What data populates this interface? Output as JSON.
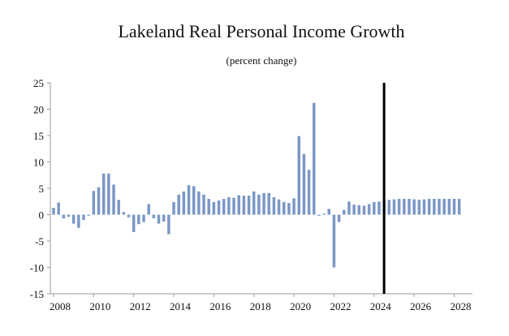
{
  "chart_data": {
    "type": "bar",
    "title": "Lakeland Real Personal Income Growth",
    "subtitle": "(percent change)",
    "xlabel": "",
    "ylabel": "",
    "ylim": [
      -15,
      25
    ],
    "yticks": [
      25,
      20,
      15,
      10,
      5,
      0,
      -5,
      -10,
      -15
    ],
    "x_start": 2008.0,
    "x_end": 2028.75,
    "x_ticks": [
      "2008",
      "2010",
      "2012",
      "2014",
      "2016",
      "2018",
      "2020",
      "2022",
      "2024",
      "2026",
      "2028"
    ],
    "forecast_marker_x": 2024.5,
    "bar_color": "#7b97c6",
    "series": [
      {
        "x": [
          2008.0,
          2008.25,
          2008.5,
          2008.75,
          2009.0,
          2009.25,
          2009.5,
          2009.75,
          2010.0,
          2010.25,
          2010.5,
          2010.75,
          2011.0,
          2011.25,
          2011.5,
          2011.75,
          2012.0,
          2012.25,
          2012.5,
          2012.75,
          2013.0,
          2013.25,
          2013.5,
          2013.75,
          2014.0,
          2014.25,
          2014.5,
          2014.75,
          2015.0,
          2015.25,
          2015.5,
          2015.75,
          2016.0,
          2016.25,
          2016.5,
          2016.75,
          2017.0,
          2017.25,
          2017.5,
          2017.75,
          2018.0,
          2018.25,
          2018.5,
          2018.75,
          2019.0,
          2019.25,
          2019.5,
          2019.75,
          2020.0,
          2020.25,
          2020.5,
          2020.75,
          2021.0,
          2021.25,
          2021.5,
          2021.75,
          2022.0,
          2022.25,
          2022.5,
          2022.75,
          2023.0,
          2023.25,
          2023.5,
          2023.75,
          2024.0,
          2024.25,
          2024.5,
          2024.75,
          2025.0,
          2025.25,
          2025.5,
          2025.75,
          2026.0,
          2026.25,
          2026.5,
          2026.75,
          2027.0,
          2027.25,
          2027.5,
          2027.75,
          2028.0,
          2028.25
        ],
        "values": [
          1.3,
          2.3,
          -0.7,
          -0.4,
          -1.7,
          -2.5,
          -1.0,
          -0.2,
          4.5,
          5.2,
          7.8,
          7.8,
          5.7,
          2.8,
          0.5,
          -0.5,
          -3.3,
          -1.8,
          -1.4,
          2.0,
          -0.7,
          -1.7,
          -1.3,
          -3.7,
          2.4,
          3.8,
          4.4,
          5.6,
          5.4,
          4.4,
          3.8,
          3.0,
          2.4,
          2.7,
          3.0,
          3.3,
          3.2,
          3.7,
          3.6,
          3.6,
          4.4,
          3.8,
          4.1,
          4.1,
          3.3,
          2.9,
          2.4,
          2.2,
          3.1,
          14.9,
          11.5,
          8.5,
          21.2,
          -0.2,
          0.2,
          1.1,
          -10.0,
          -1.4,
          0.9,
          2.5,
          1.9,
          1.8,
          1.7,
          2.0,
          2.4,
          2.5,
          2.7,
          2.8,
          2.9,
          3.0,
          3.0,
          3.0,
          2.9,
          2.8,
          2.9,
          3.0,
          3.0,
          3.0,
          3.0,
          3.0,
          3.0,
          3.0
        ]
      }
    ]
  }
}
